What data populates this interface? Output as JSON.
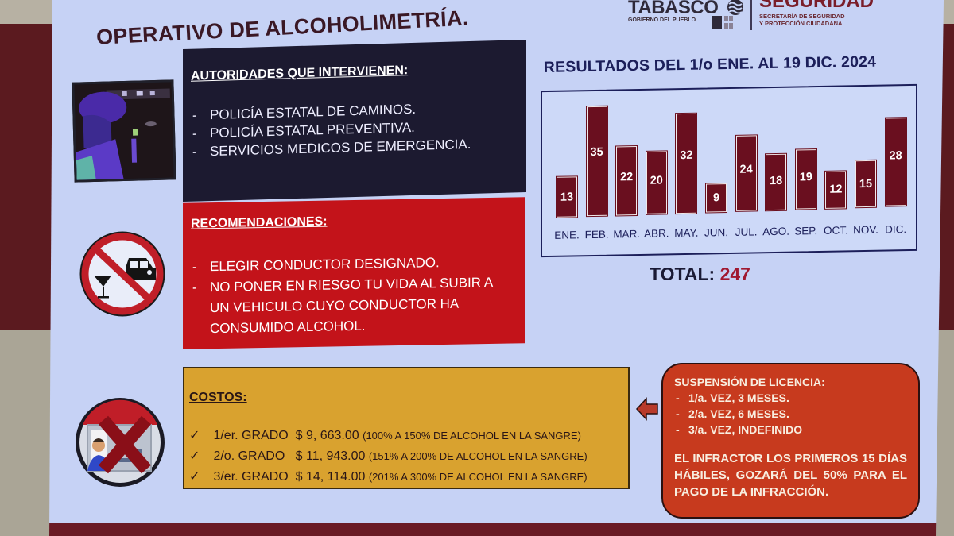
{
  "slide": {
    "title": "OPERATIVO DE ALCOHOLIMETRÍA.",
    "logos": {
      "tabasco": "TABASCO",
      "tabasco_sub": "GOBIERNO DEL PUEBLO",
      "seguridad": "SEGURIDAD",
      "seguridad_sub_1": "SECRETARÍA DE SEGURIDAD",
      "seguridad_sub_2": "Y PROTECCIÓN CIUDADANA"
    },
    "photo": {
      "alt": "police-officer-checkpoint-photo"
    },
    "authorities": {
      "heading": "AUTORIDADES QUE INTERVIENEN:",
      "items": [
        "POLICÍA ESTATAL DE CAMINOS.",
        "POLICÍA ESTATAL PREVENTIVA.",
        "SERVICIOS MEDICOS DE EMERGENCIA."
      ]
    },
    "recommendations": {
      "heading": "RECOMENDACIONES:",
      "items": [
        "ELEGIR CONDUCTOR DESIGNADO.",
        "NO PONER EN  RIESGO TU VIDA AL SUBIR A",
        "UN VEHICULO CUYO CONDUCTOR HA",
        "CONSUMIDO ALCOHOL."
      ]
    },
    "costs": {
      "heading": "COSTOS:",
      "check": "✓",
      "rows": [
        {
          "grade": "1/er. GRADO",
          "amount": "$ 9, 663.00",
          "range": "(100% A 150% DE ALCOHOL EN LA SANGRE)"
        },
        {
          "grade": "2/o. GRADO",
          "amount": "$ 11, 943.00",
          "range": "(151% A 200% DE ALCOHOL EN LA SANGRE)"
        },
        {
          "grade": "3/er. GRADO",
          "amount": "$ 14, 114.00",
          "range": "(201% A 300% DE ALCOHOL EN LA SANGRE)"
        }
      ]
    },
    "suspension": {
      "heading": "SUSPENSIÓN DE LICENCIA:",
      "items": [
        "1/a. VEZ, 3 MESES.",
        "2/a.  VEZ, 6 MESES.",
        "3/a. VEZ, INDEFINIDO"
      ],
      "note": "EL INFRACTOR LOS PRIMEROS 15 DÍAS HÁBILES, GOZARÁ DEL 50% PARA EL PAGO DE LA INFRACCIÓN."
    },
    "total": {
      "label": "TOTAL:",
      "value": "247"
    },
    "colors": {
      "slide_bg": "#c6d2f5",
      "bar": "#6a0f1f",
      "navy": "#1c1f5a",
      "authorities_bg": "#1c1a30",
      "recommendations_bg": "#c3131a",
      "costs_bg": "#d9a22f",
      "suspension_bg": "#c73a1e",
      "total_value": "#a01830"
    }
  },
  "chart_data": {
    "type": "bar",
    "title": "RESULTADOS DEL 1/o ENE. AL 19 DIC. 2024",
    "categories": [
      "ENE.",
      "FEB.",
      "MAR.",
      "ABR.",
      "MAY.",
      "JUN.",
      "JUL.",
      "AGO.",
      "SEP.",
      "OCT.",
      "NOV.",
      "DIC."
    ],
    "values": [
      13,
      35,
      22,
      20,
      32,
      9,
      24,
      18,
      19,
      12,
      15,
      28
    ],
    "xlabel": "",
    "ylabel": "",
    "ylim": [
      0,
      38
    ],
    "grid": false,
    "legend": null,
    "data_labels": true,
    "total": 247
  }
}
